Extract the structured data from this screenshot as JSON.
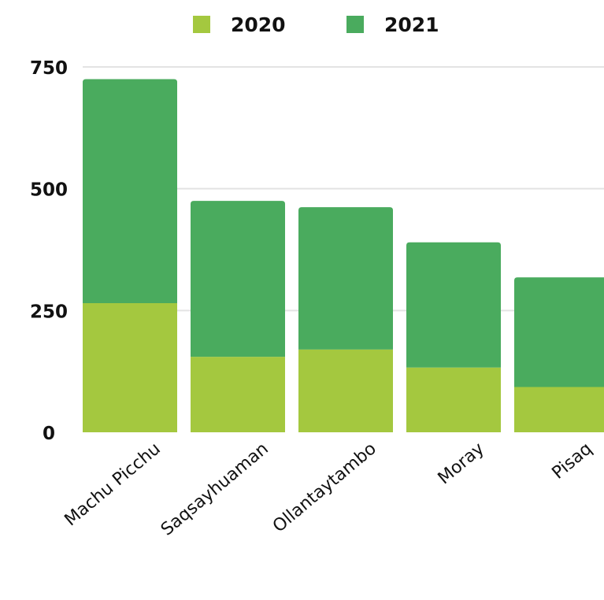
{
  "chart_data": {
    "type": "bar",
    "stacked": true,
    "title": "",
    "xlabel": "",
    "ylabel": "",
    "categories": [
      "Machu Picchu",
      "Saqsayhuaman",
      "Ollantaytambo",
      "Moray",
      "Pisaq"
    ],
    "series": [
      {
        "name": "2020",
        "color": "#a4c83f",
        "values": [
          265,
          155,
          170,
          133,
          93
        ]
      },
      {
        "name": "2021",
        "color": "#4aab5e",
        "values": [
          460,
          320,
          292,
          257,
          225
        ]
      }
    ],
    "yticks": [
      "0",
      "250",
      "500",
      "750"
    ],
    "ylim": [
      0,
      800
    ],
    "grid": true,
    "legend": "top"
  }
}
